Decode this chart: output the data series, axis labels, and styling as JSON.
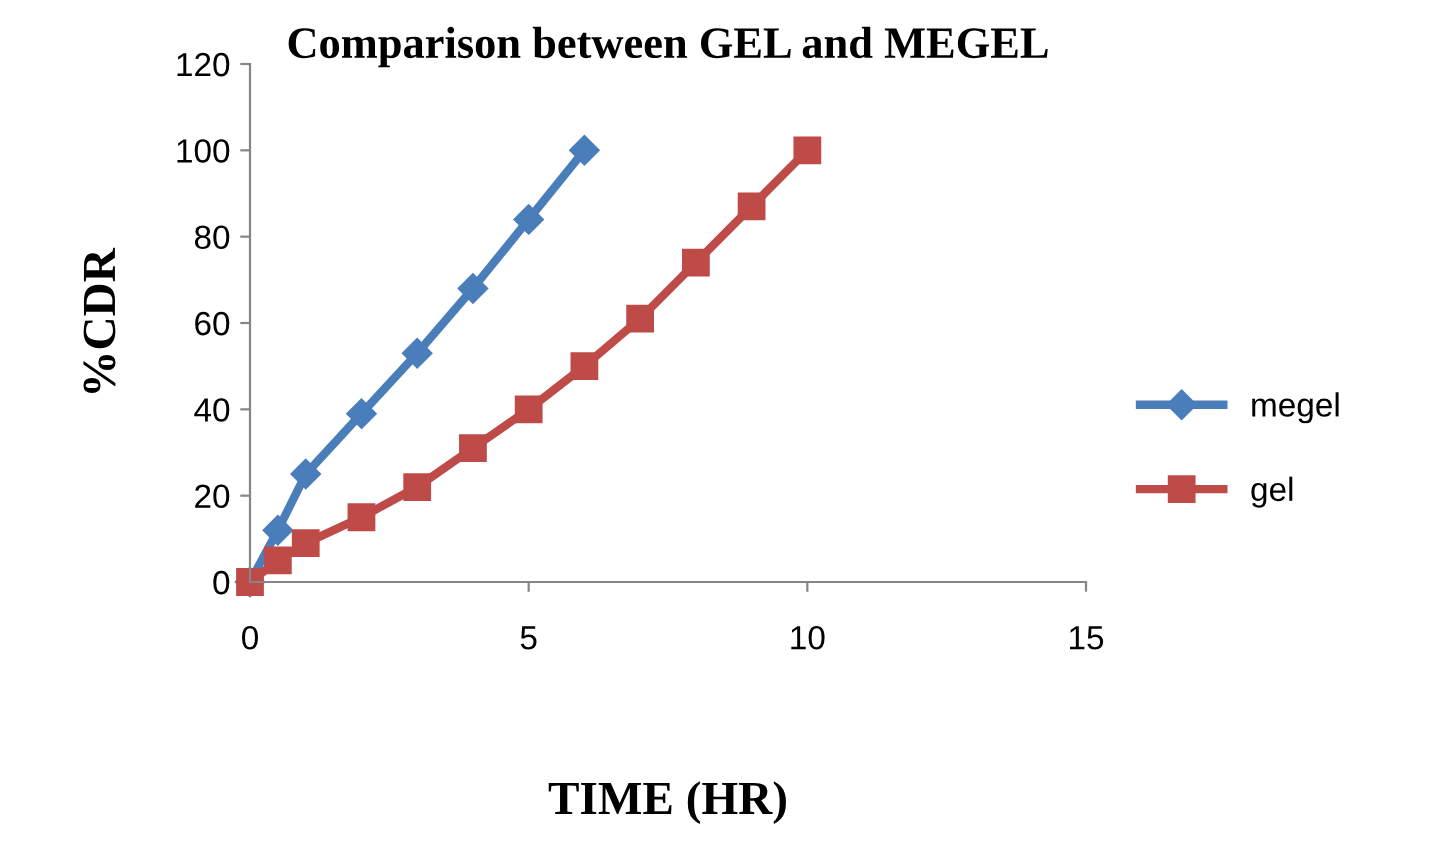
{
  "chart_data": {
    "type": "line",
    "title": "Comparison between GEL and MEGEL",
    "xlabel": "TIME (HR)",
    "ylabel": "%CDR",
    "series": [
      {
        "name": "megel",
        "color": "#4a7ebb",
        "marker": "diamond",
        "x": [
          0,
          0.5,
          1,
          2,
          3,
          4,
          5,
          6
        ],
        "values": [
          0,
          12,
          25,
          39,
          53,
          68,
          84,
          100
        ]
      },
      {
        "name": "gel",
        "color": "#be4b48",
        "marker": "square",
        "x": [
          0,
          0.5,
          1,
          2,
          3,
          4,
          5,
          6,
          7,
          8,
          9,
          10
        ],
        "values": [
          0,
          5,
          9,
          15,
          22,
          31,
          40,
          50,
          61,
          74,
          87,
          100
        ]
      }
    ],
    "xlim": [
      0,
      15
    ],
    "xticks": [
      0,
      5,
      10,
      15
    ],
    "ylim": [
      0,
      120
    ],
    "yticks": [
      0,
      20,
      40,
      60,
      80,
      100,
      120
    ],
    "grid": false,
    "legend": "right",
    "line_style": "solid"
  }
}
